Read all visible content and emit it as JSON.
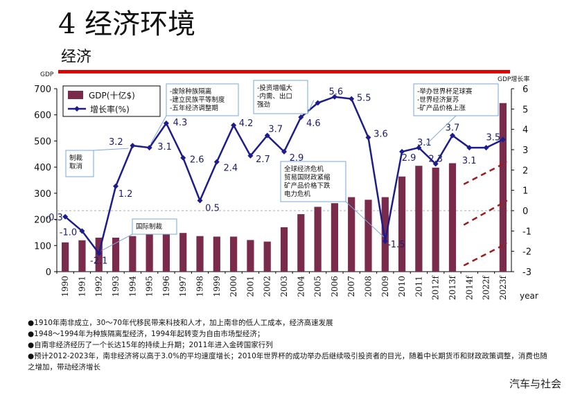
{
  "header": {
    "title": "4 经济环境",
    "subtitle": "经济"
  },
  "colors": {
    "bar": "#7a2a4a",
    "line": "#1c1c8c",
    "accent_red": "#e00000",
    "projection": "#9c1c1c"
  },
  "chart_data": {
    "type": "bar",
    "categories": [
      "1990",
      "1991",
      "1992",
      "1993",
      "1994",
      "1995",
      "1996",
      "1997",
      "1998",
      "1999",
      "2000",
      "2001",
      "2002",
      "2003",
      "2004",
      "2005",
      "2006",
      "2007",
      "2008",
      "2009",
      "2010",
      "2011",
      "2012f",
      "2013f",
      "2014f",
      "2022f",
      "2023f"
    ],
    "series": [
      {
        "name": "GDP(十亿$)",
        "type": "bar",
        "axis": "left",
        "values": [
          112,
          120,
          130,
          130,
          136,
          150,
          145,
          148,
          136,
          134,
          134,
          121,
          115,
          170,
          220,
          248,
          262,
          285,
          275,
          285,
          364,
          405,
          398,
          415,
          null,
          null,
          645
        ]
      },
      {
        "name": "增长率(%)",
        "type": "line",
        "axis": "right",
        "values": [
          -0.3,
          -1.0,
          -2.1,
          1.2,
          3.2,
          3.1,
          4.3,
          2.6,
          0.5,
          2.4,
          4.2,
          2.7,
          3.7,
          2.9,
          4.6,
          5.3,
          5.6,
          5.5,
          3.6,
          -1.5,
          2.9,
          3.1,
          2.3,
          3.7,
          3.1,
          3.1,
          3.5
        ]
      }
    ],
    "point_labels": [
      {
        "index": 0,
        "text": "-0.3"
      },
      {
        "index": 1,
        "text": "-1.0"
      },
      {
        "index": 2,
        "text": "-2.1"
      },
      {
        "index": 3,
        "text": "1.2"
      },
      {
        "index": 4,
        "text": "3.2"
      },
      {
        "index": 5,
        "text": "3.1"
      },
      {
        "index": 6,
        "text": "4.3"
      },
      {
        "index": 7,
        "text": "2.6"
      },
      {
        "index": 8,
        "text": "0.5"
      },
      {
        "index": 9,
        "text": "2.4"
      },
      {
        "index": 10,
        "text": "4.2"
      },
      {
        "index": 11,
        "text": "2.7"
      },
      {
        "index": 12,
        "text": "3.7"
      },
      {
        "index": 13,
        "text": "2.9"
      },
      {
        "index": 14,
        "text": "4.6"
      },
      {
        "index": 16,
        "text": "5.6"
      },
      {
        "index": 17,
        "text": "5.5"
      },
      {
        "index": 18,
        "text": "3.6"
      },
      {
        "index": 19,
        "text": "-1.5"
      },
      {
        "index": 20,
        "text": "2.9"
      },
      {
        "index": 21,
        "text": "3.1"
      },
      {
        "index": 22,
        "text": "2.3"
      },
      {
        "index": 23,
        "text": "3.7"
      },
      {
        "index": 24,
        "text": "3.1"
      },
      {
        "index": 26,
        "text": "3.5"
      }
    ],
    "y_left": {
      "label": "GDP",
      "min": 0,
      "max": 700,
      "ticks": [
        0,
        100,
        200,
        300,
        400,
        500,
        600,
        700
      ]
    },
    "y_right": {
      "label": "GDP增长率",
      "min": -3,
      "max": 6,
      "ticks": [
        -3,
        -2,
        -1,
        0,
        1,
        2,
        3,
        4,
        5,
        6
      ]
    },
    "xlabel": "year",
    "zero_reference_line": 0,
    "projection_lines": [
      {
        "from_index": 24,
        "from_y": -2.7,
        "to_index": 26,
        "to_y": -1.6
      },
      {
        "from_index": 24,
        "from_y": -0.7,
        "to_index": 26,
        "to_y": 0.5
      },
      {
        "from_index": 24,
        "from_y": 1.3,
        "to_index": 26,
        "to_y": 2.4
      }
    ],
    "legend": {
      "position": "top-left",
      "bar_label": "GDP(十亿$)",
      "line_label": "增长率(%)"
    },
    "annotations": [
      {
        "lines": [
          "制裁",
          "取消"
        ],
        "target_index": 4
      },
      {
        "lines": [
          "-废除种族隔离",
          "-建立民族平等制度",
          "-五年经济调整期"
        ],
        "target_index": 5
      },
      {
        "lines": [
          "-投资增幅大",
          "-内需、出口",
          "强劲"
        ],
        "target_index": 15
      },
      {
        "lines": [
          "全球经济危机",
          "贸易国财政紧缩",
          "矿产品价格下跌",
          "电力危机"
        ],
        "target_index": 19
      },
      {
        "lines": [
          "国际制裁"
        ],
        "target_index": 2
      },
      {
        "lines": [
          "-举办世界杯足球赛",
          "-世界经济复苏",
          "-矿产品价格上涨"
        ],
        "target_index": 21
      }
    ]
  },
  "notes": [
    "●1910年南非成立，30～70年代移民带来科技和人才，加上南非的低人工成本，经济高速发展",
    "●1948～1994年为种族隔离型经济，1994年起转变为自由市场型经济；",
    "●自南非经济经历了一个长达15年的持续上升期；2011年进入金砖国家行列",
    "●预计2012-2023年，南非经济将以高于3.0%的平均速度增长；2010年世界杯的成功举办后继续吸引投资者的目光，随着中长期货币和财政政策调整，消费也随之增加，带动经济增长"
  ],
  "footer": {
    "watermark": "汽车与社会"
  }
}
